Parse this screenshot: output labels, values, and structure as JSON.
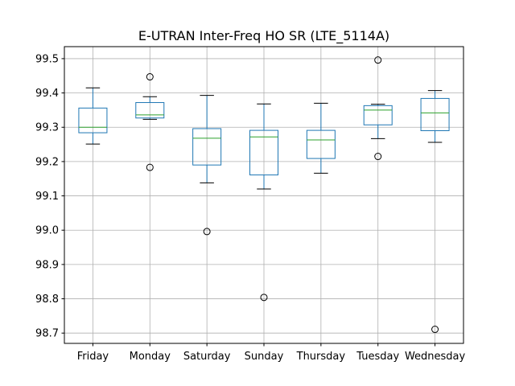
{
  "chart_data": {
    "type": "box",
    "title": "E-UTRAN Inter-Freq HO SR (LTE_5114A)",
    "xlabel": "",
    "ylabel": "",
    "ylim": [
      98.67,
      99.535
    ],
    "yticks": [
      98.7,
      98.8,
      98.9,
      99.0,
      99.1,
      99.2,
      99.3,
      99.4,
      99.5
    ],
    "ytick_labels": [
      "98.7",
      "98.8",
      "98.9",
      "99.0",
      "99.1",
      "99.2",
      "99.3",
      "99.4",
      "99.5"
    ],
    "grid": true,
    "categories": [
      "Friday",
      "Monday",
      "Saturday",
      "Sunday",
      "Thursday",
      "Tuesday",
      "Wednesday"
    ],
    "boxes": [
      {
        "category": "Friday",
        "whisker_low": 99.251,
        "q1": 99.284,
        "median": 99.3,
        "q3": 99.356,
        "whisker_high": 99.415,
        "fliers": []
      },
      {
        "category": "Monday",
        "whisker_low": 99.323,
        "q1": 99.327,
        "median": 99.336,
        "q3": 99.372,
        "whisker_high": 99.389,
        "fliers": [
          99.447,
          99.183
        ]
      },
      {
        "category": "Saturday",
        "whisker_low": 99.138,
        "q1": 99.19,
        "median": 99.268,
        "q3": 99.296,
        "whisker_high": 99.393,
        "fliers": [
          98.996
        ]
      },
      {
        "category": "Sunday",
        "whisker_low": 99.12,
        "q1": 99.161,
        "median": 99.272,
        "q3": 99.291,
        "whisker_high": 99.368,
        "fliers": [
          98.804
        ]
      },
      {
        "category": "Thursday",
        "whisker_low": 99.166,
        "q1": 99.209,
        "median": 99.263,
        "q3": 99.291,
        "whisker_high": 99.37,
        "fliers": []
      },
      {
        "category": "Tuesday",
        "whisker_low": 99.267,
        "q1": 99.307,
        "median": 99.35,
        "q3": 99.363,
        "whisker_high": 99.367,
        "fliers": [
          99.496,
          99.215
        ]
      },
      {
        "category": "Wednesday",
        "whisker_low": 99.256,
        "q1": 99.29,
        "median": 99.342,
        "q3": 99.384,
        "whisker_high": 99.407,
        "fliers": [
          98.711
        ]
      }
    ]
  }
}
